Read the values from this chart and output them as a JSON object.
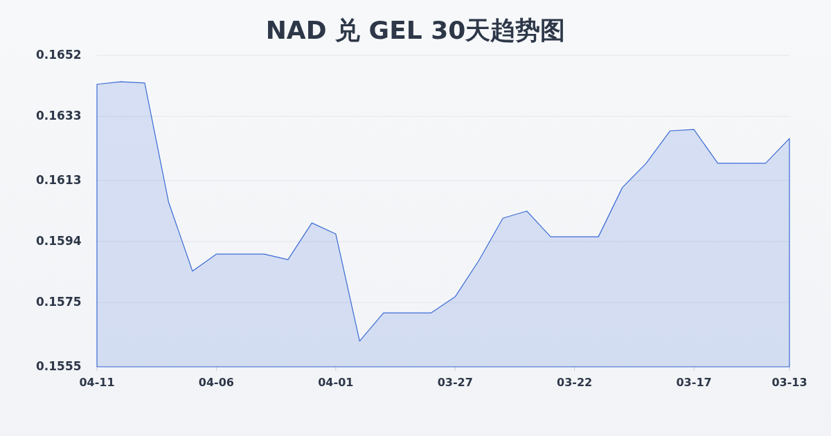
{
  "chart_data": {
    "type": "area",
    "title": "NAD 兑 GEL 30天趋势图",
    "categories": [
      "04-11",
      null,
      null,
      null,
      null,
      "04-06",
      null,
      null,
      null,
      null,
      "04-01",
      null,
      null,
      null,
      null,
      "03-27",
      null,
      null,
      null,
      null,
      "03-22",
      null,
      null,
      null,
      null,
      "03-17",
      null,
      null,
      null,
      "03-13"
    ],
    "values": [
      0.1643,
      0.16438,
      0.16434,
      0.16063,
      0.15848,
      0.15901,
      0.15901,
      0.15901,
      0.15884,
      0.15998,
      0.15964,
      0.1563,
      0.15718,
      0.15718,
      0.15718,
      0.15768,
      0.15882,
      0.16013,
      0.16035,
      0.15955,
      0.15955,
      0.15955,
      0.16108,
      0.16184,
      0.16285,
      0.16289,
      0.16184,
      0.16184,
      0.16184,
      0.16261
    ],
    "color": "#3a6bd6",
    "ylim": [
      0.1555,
      0.1652
    ],
    "yticks": [
      0.1555,
      0.1575,
      0.1594,
      0.1613,
      0.1633,
      0.1652
    ],
    "grid": "y"
  }
}
